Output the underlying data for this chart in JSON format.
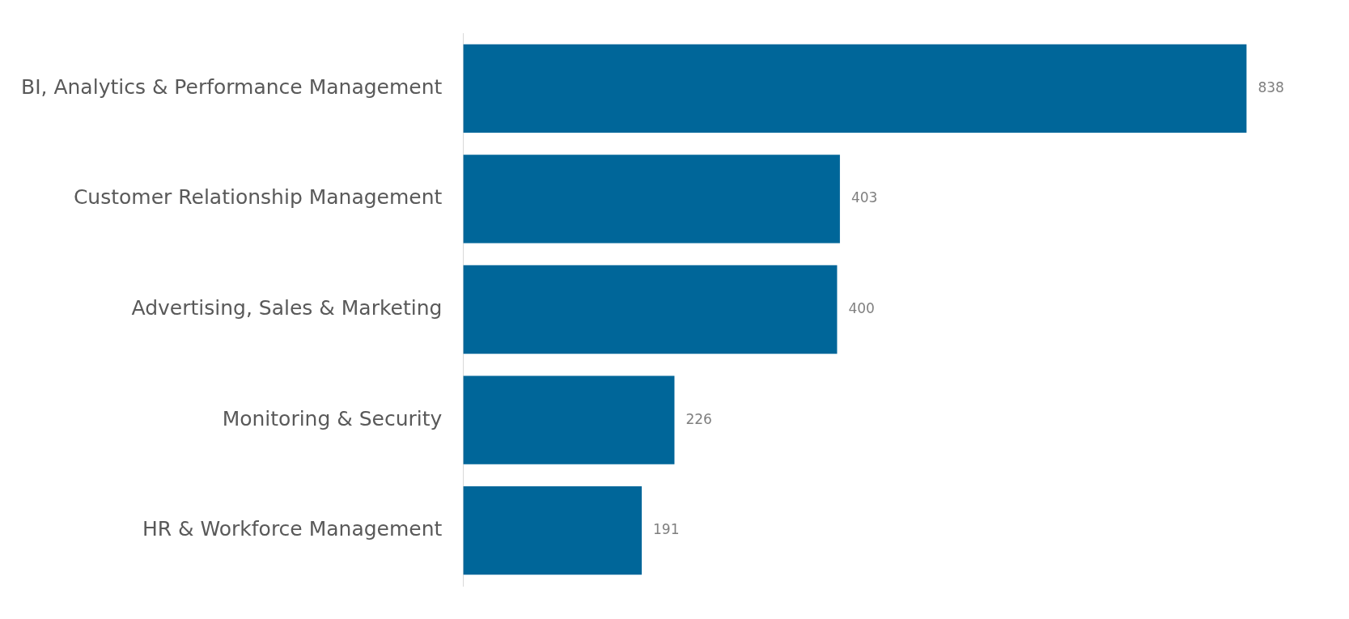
{
  "chart_data": {
    "type": "bar",
    "orientation": "horizontal",
    "categories": [
      "BI, Analytics & Performance Management",
      "Customer Relationship Management",
      "Advertising, Sales & Marketing",
      "Monitoring & Security",
      "HR & Workforce Management"
    ],
    "values": [
      838,
      403,
      400,
      226,
      191
    ],
    "color": "#006699",
    "data_labels": true,
    "legend": false,
    "tick_labels": "y"
  }
}
